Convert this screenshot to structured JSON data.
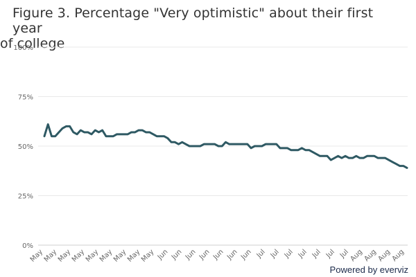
{
  "chart_title": {
    "line1": "Figure 3. Percentage \"Very optimistic\" about their first year",
    "line2": "of college"
  },
  "credits": "Powered by everviz",
  "chart_data": {
    "type": "line",
    "title": "Figure 3. Percentage \"Very optimistic\" about their first year of college",
    "xlabel": "",
    "ylabel": "",
    "ylim": [
      0,
      100
    ],
    "yticks": [
      0,
      25,
      50,
      75,
      100
    ],
    "ytick_labels": [
      "0%",
      "25%",
      "50%",
      "75%",
      "100%"
    ],
    "grid": true,
    "legend": "none",
    "line_color": "#2e5963",
    "xtick_labels": [
      "May",
      "May",
      "May",
      "May",
      "May",
      "May",
      "May",
      "May",
      "May",
      "Jun",
      "Jun",
      "Jun",
      "Jun",
      "Jun",
      "Jun",
      "Jun",
      "Jul",
      "Jul",
      "Jul",
      "Jul",
      "Jul",
      "Jul",
      "Jul",
      "Aug",
      "Aug",
      "Aug",
      "Aug"
    ],
    "series": [
      {
        "values": [
          55,
          61,
          55,
          55,
          57,
          59,
          60,
          60,
          57,
          56,
          58,
          57,
          57,
          56,
          58,
          57,
          58,
          55,
          55,
          55,
          56,
          56,
          56,
          56,
          57,
          57,
          58,
          58,
          57,
          57,
          56,
          55,
          55,
          55,
          54,
          52,
          52,
          51,
          52,
          51,
          50,
          50,
          50,
          50,
          51,
          51,
          51,
          51,
          50,
          50,
          52,
          51,
          51,
          51,
          51,
          51,
          51,
          49,
          50,
          50,
          50,
          51,
          51,
          51,
          51,
          49,
          49,
          49,
          48,
          48,
          48,
          49,
          48,
          48,
          47,
          46,
          45,
          45,
          45,
          43,
          44,
          45,
          44,
          45,
          44,
          44,
          45,
          44,
          44,
          45,
          45,
          45,
          44,
          44,
          44,
          43,
          42,
          41,
          40,
          40,
          39
        ]
      }
    ]
  }
}
